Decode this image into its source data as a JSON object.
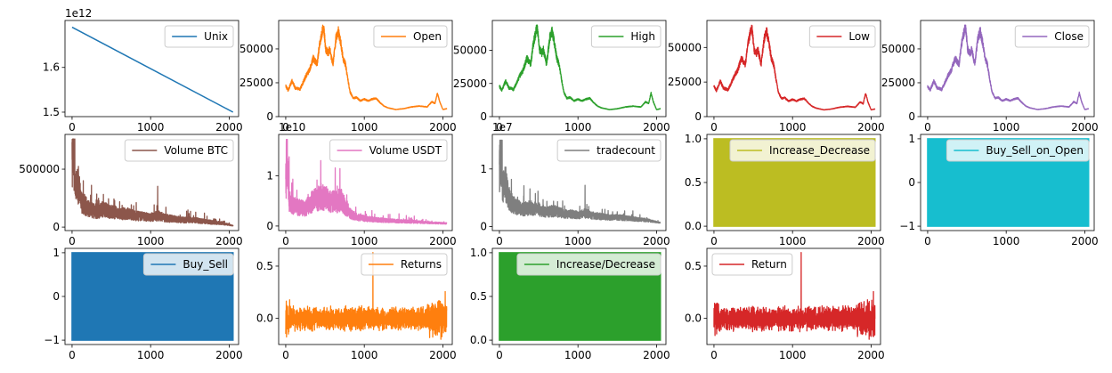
{
  "chart_data": [
    {
      "type": "line",
      "series": [
        {
          "name": "Unix",
          "color": "#1f77b4",
          "shape": "linear",
          "y_start": 1.69,
          "y_end": 1.5
        }
      ],
      "xlim": [
        -90,
        2120
      ],
      "ylim": [
        1.49,
        1.705
      ],
      "x_ticks": [
        0,
        1000,
        2000
      ],
      "x_tick_labels": [
        "0",
        "1000",
        "2000"
      ],
      "y_ticks": [
        1.5,
        1.6
      ],
      "y_tick_labels": [
        "1.5",
        "1.6"
      ],
      "offset": "1e12",
      "legend": "top-right"
    },
    {
      "type": "line",
      "series": [
        {
          "name": "Open",
          "color": "#ff7f0e",
          "shape": "price",
          "min": 3300,
          "max": 67500
        }
      ],
      "xlim": [
        -90,
        2120
      ],
      "ylim": [
        0,
        71000
      ],
      "x_ticks": [
        0,
        1000,
        2000
      ],
      "x_tick_labels": [
        "0",
        "1000",
        "2000"
      ],
      "y_ticks": [
        0,
        25000,
        50000
      ],
      "y_tick_labels": [
        "0",
        "25000",
        "50000"
      ],
      "offset": "",
      "legend": "top-right"
    },
    {
      "type": "line",
      "series": [
        {
          "name": "High",
          "color": "#2ca02c",
          "shape": "price",
          "min": 3300,
          "max": 69000
        }
      ],
      "xlim": [
        -90,
        2120
      ],
      "ylim": [
        0,
        72500
      ],
      "x_ticks": [
        0,
        1000,
        2000
      ],
      "x_tick_labels": [
        "0",
        "1000",
        "2000"
      ],
      "y_ticks": [
        0,
        25000,
        50000
      ],
      "y_tick_labels": [
        "0",
        "25000",
        "50000"
      ],
      "offset": "",
      "legend": "top-right"
    },
    {
      "type": "line",
      "series": [
        {
          "name": "Low",
          "color": "#d62728",
          "shape": "price",
          "min": 3000,
          "max": 66000
        }
      ],
      "xlim": [
        -90,
        2120
      ],
      "ylim": [
        0,
        69500
      ],
      "x_ticks": [
        0,
        1000,
        2000
      ],
      "x_tick_labels": [
        "0",
        "1000",
        "2000"
      ],
      "y_ticks": [
        0,
        25000,
        50000
      ],
      "y_tick_labels": [
        "0",
        "25000",
        "50000"
      ],
      "offset": "",
      "legend": "top-right"
    },
    {
      "type": "line",
      "series": [
        {
          "name": "Close",
          "color": "#9467bd",
          "shape": "price",
          "min": 3300,
          "max": 67500
        }
      ],
      "xlim": [
        -90,
        2120
      ],
      "ylim": [
        0,
        71000
      ],
      "x_ticks": [
        0,
        1000,
        2000
      ],
      "x_tick_labels": [
        "0",
        "1000",
        "2000"
      ],
      "y_ticks": [
        0,
        25000,
        50000
      ],
      "y_tick_labels": [
        "0",
        "25000",
        "50000"
      ],
      "offset": "",
      "legend": "top-right"
    },
    {
      "type": "line",
      "series": [
        {
          "name": "Volume BTC",
          "color": "#8c564b",
          "shape": "volume",
          "min": 5000,
          "max": 760000
        }
      ],
      "xlim": [
        -90,
        2120
      ],
      "ylim": [
        -30000,
        800000
      ],
      "x_ticks": [
        0,
        1000,
        2000
      ],
      "x_tick_labels": [
        "0",
        "1000",
        "2000"
      ],
      "y_ticks": [
        0,
        500000
      ],
      "y_tick_labels": [
        "0",
        "500000"
      ],
      "offset": "",
      "legend": "top-right"
    },
    {
      "type": "line",
      "series": [
        {
          "name": "Volume USDT",
          "color": "#e377c2",
          "shape": "volume2",
          "min": 0.02,
          "max": 1.72
        }
      ],
      "xlim": [
        -90,
        2120
      ],
      "ylim": [
        -0.09,
        1.82
      ],
      "x_ticks": [
        0,
        1000,
        2000
      ],
      "x_tick_labels": [
        "0",
        "1000",
        "2000"
      ],
      "y_ticks": [
        0,
        1
      ],
      "y_tick_labels": [
        "0",
        "1"
      ],
      "offset": "1e10",
      "legend": "top-right"
    },
    {
      "type": "line",
      "series": [
        {
          "name": "tradecount",
          "color": "#7f7f7f",
          "shape": "volume",
          "min": 0.05,
          "max": 1.5
        }
      ],
      "xlim": [
        -90,
        2120
      ],
      "ylim": [
        -0.07,
        1.6
      ],
      "x_ticks": [
        0,
        1000,
        2000
      ],
      "x_tick_labels": [
        "0",
        "1000",
        "2000"
      ],
      "y_ticks": [
        0,
        1
      ],
      "y_tick_labels": [
        "0",
        "1"
      ],
      "offset": "1e7",
      "legend": "top-right"
    },
    {
      "type": "area",
      "series": [
        {
          "name": "Increase_Decrease",
          "color": "#bcbd22",
          "shape": "binary",
          "min": 0,
          "max": 1
        }
      ],
      "xlim": [
        -90,
        2120
      ],
      "ylim": [
        -0.05,
        1.05
      ],
      "x_ticks": [
        0,
        1000,
        2000
      ],
      "x_tick_labels": [
        "0",
        "1000",
        "2000"
      ],
      "y_ticks": [
        0,
        0.5,
        1
      ],
      "y_tick_labels": [
        "0.0",
        "0.5",
        "1.0"
      ],
      "offset": "",
      "legend": "top-right"
    },
    {
      "type": "area",
      "series": [
        {
          "name": "Buy_Sell_on_Open",
          "color": "#17becf",
          "shape": "binary",
          "min": -1,
          "max": 1
        }
      ],
      "xlim": [
        -90,
        2120
      ],
      "ylim": [
        -1.1,
        1.1
      ],
      "x_ticks": [
        0,
        1000,
        2000
      ],
      "x_tick_labels": [
        "0",
        "1000",
        "2000"
      ],
      "y_ticks": [
        -1,
        0,
        1
      ],
      "y_tick_labels": [
        "−1",
        "0",
        "1"
      ],
      "offset": "",
      "legend": "top-right"
    },
    {
      "type": "area",
      "series": [
        {
          "name": "Buy_Sell",
          "color": "#1f77b4",
          "shape": "binary",
          "min": -1,
          "max": 1
        }
      ],
      "xlim": [
        -90,
        2120
      ],
      "ylim": [
        -1.1,
        1.1
      ],
      "x_ticks": [
        0,
        1000,
        2000
      ],
      "x_tick_labels": [
        "0",
        "1000",
        "2000"
      ],
      "y_ticks": [
        -1,
        0,
        1
      ],
      "y_tick_labels": [
        "−1",
        "0",
        "1"
      ],
      "offset": "",
      "legend": "top-right"
    },
    {
      "type": "line",
      "series": [
        {
          "name": "Returns",
          "color": "#ff7f0e",
          "shape": "returns",
          "min": -0.2,
          "max": 0.63
        }
      ],
      "xlim": [
        -90,
        2120
      ],
      "ylim": [
        -0.25,
        0.67
      ],
      "x_ticks": [
        0,
        1000,
        2000
      ],
      "x_tick_labels": [
        "0",
        "1000",
        "2000"
      ],
      "y_ticks": [
        0,
        0.5
      ],
      "y_tick_labels": [
        "0.0",
        "0.5"
      ],
      "offset": "",
      "legend": "top-right"
    },
    {
      "type": "area",
      "series": [
        {
          "name": "Increase/Decrease",
          "color": "#2ca02c",
          "shape": "binary",
          "min": 0,
          "max": 1
        }
      ],
      "xlim": [
        -90,
        2120
      ],
      "ylim": [
        -0.05,
        1.05
      ],
      "x_ticks": [
        0,
        1000,
        2000
      ],
      "x_tick_labels": [
        "0",
        "1000",
        "2000"
      ],
      "y_ticks": [
        0,
        0.5,
        1
      ],
      "y_tick_labels": [
        "0.0",
        "0.5",
        "1.0"
      ],
      "offset": "",
      "legend": "top-right"
    },
    {
      "type": "line",
      "series": [
        {
          "name": "Return",
          "color": "#d62728",
          "shape": "returns",
          "min": -0.2,
          "max": 0.63
        }
      ],
      "xlim": [
        -90,
        2120
      ],
      "ylim": [
        -0.25,
        0.67
      ],
      "x_ticks": [
        0,
        1000,
        2000
      ],
      "x_tick_labels": [
        "0",
        "1000",
        "2000"
      ],
      "y_ticks": [
        0,
        0.5
      ],
      "y_tick_labels": [
        "0.0",
        "0.5"
      ],
      "offset": "",
      "legend": "top-left"
    }
  ]
}
